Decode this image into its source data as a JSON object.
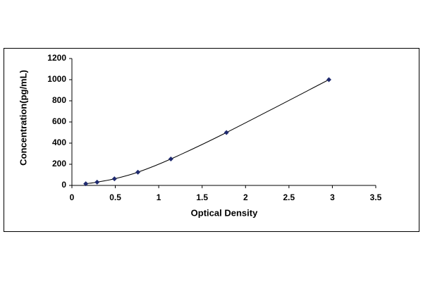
{
  "chart_data": {
    "type": "scatter",
    "x_label": "Optical Density",
    "y_label": "Concentration(pg/mL)",
    "series": [
      {
        "color": "#1f2a6e",
        "x": [
          0.16,
          0.29,
          0.49,
          0.76,
          1.14,
          1.78,
          2.96
        ],
        "values": [
          15.6,
          31.2,
          62.5,
          125,
          250,
          500,
          1000
        ]
      }
    ],
    "trendline": true,
    "xlim": [
      0,
      3.5
    ],
    "xticks": [
      0,
      0.5,
      1,
      1.5,
      2,
      2.5,
      3,
      3.5
    ],
    "ylim": [
      0,
      1200
    ],
    "yticks": [
      0,
      200,
      400,
      600,
      800,
      1000,
      1200
    ]
  }
}
